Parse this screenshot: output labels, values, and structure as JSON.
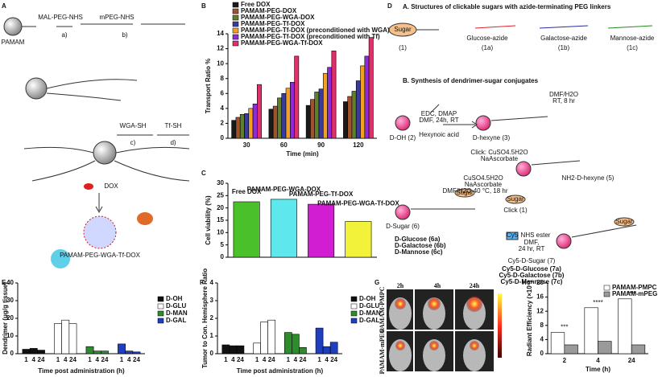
{
  "scheme_a": {
    "panel": "A",
    "texts": [
      "MAL-PEG-NHS",
      "mPEG-NHS",
      "a)",
      "b)",
      "PAMAM",
      "WGA-SH",
      "Tf-SH",
      "c)",
      "d)",
      "DOX",
      "PAMAM-PEG-WGA-Tf-DOX"
    ]
  },
  "scheme_d": {
    "panel": "D",
    "heading_a": "A. Structures of clickable sugars with azide-terminating PEG linkers",
    "heading_b": "B. Synthesis of dendrimer-sugar conjugates",
    "sugar_structures": [
      "Sugar",
      "(1)",
      "Glucose-azide",
      "(1a)",
      "Galactose-azide",
      "(1b)",
      "Mannose-azide",
      "(1c)"
    ],
    "steps": [
      "D-OH (2)",
      "EDC, DMAP",
      "DMF, 24h, RT",
      "Hexynoic acid",
      "D-hexyne (3)",
      "DMF/H2O",
      "RT, 8 hr",
      "Click: CuSO4.5H2O",
      "NaAscorbate",
      "NH2-D-hexyne (5)",
      "CuSO4.5H2O",
      "NaAscorbate",
      "DMF/H2O 40 °C, 18 hr",
      "Sugar",
      "Click (1)",
      "D-Sugar (6)",
      "Sugar",
      "Sugar",
      "Cy5",
      "NHS ester",
      "DMF,",
      "24 hr, RT",
      "Cy5-D-Sugar (7)"
    ],
    "products_6": [
      {
        "text": "D-Glucose (6a)",
        "color": "#e0202a"
      },
      {
        "text": "D-Galactose (6b)",
        "color": "#2a2aa0"
      },
      {
        "text": "D-Mannose (6c)",
        "color": "#1f8a1f"
      }
    ],
    "products_7": [
      {
        "text": "Cy5-D-Glucose (7a)",
        "color": "#e0202a"
      },
      {
        "text": "Cy5-D-Galactose (7b)",
        "color": "#2a2aa0"
      },
      {
        "text": "Cy5-D-Mannose (7c)",
        "color": "#1f8a1f"
      }
    ]
  },
  "imaging_g": {
    "panel": "G",
    "times": [
      "2h",
      "4h",
      "24h"
    ],
    "rows": [
      "PAMAM-PMPC",
      "PAMAM-mPEG"
    ]
  },
  "chart_data": [
    {
      "type": "bar",
      "panel": "B",
      "y_label": "Transport Ratio %",
      "x_label": "Time (min)",
      "categories": [
        "30",
        "60",
        "90",
        "120"
      ],
      "series": [
        {
          "name": "Free DOX",
          "color": "#1a1a1a",
          "values": [
            2.4,
            3.9,
            4.4,
            4.9
          ]
        },
        {
          "name": "PAMAM-PEG-DOX",
          "color": "#a0522d",
          "values": [
            2.8,
            4.3,
            5.2,
            5.6
          ]
        },
        {
          "name": "PAMAM-PEG-WGA-DOX",
          "color": "#5f7f2a",
          "values": [
            3.2,
            5.4,
            6.2,
            6.3
          ]
        },
        {
          "name": "PAMAM-PEG-Tf-DOX",
          "color": "#3b3b9c",
          "values": [
            3.3,
            6.0,
            6.6,
            7.7
          ]
        },
        {
          "name": "PAMAM-PEG-Tf-DOX (preconditioned with WGA)",
          "color": "#f2a024",
          "values": [
            4.0,
            6.7,
            8.7,
            9.7
          ]
        },
        {
          "name": "PAMAM-PEG-Tf-DOX (preconditioned with Tf)",
          "color": "#8e2ad8",
          "values": [
            4.6,
            7.5,
            9.5,
            11.0
          ]
        },
        {
          "name": "PAMAM-PEG-WGA-Tf-DOX",
          "color": "#e0306a",
          "values": [
            7.2,
            11.0,
            11.7,
            13.5
          ]
        }
      ],
      "ylim": [
        0,
        14
      ],
      "yticks": [
        0,
        2,
        4,
        6,
        8,
        10,
        12,
        14
      ]
    },
    {
      "type": "bar",
      "panel": "C",
      "y_label": "Cell viability (%)",
      "categories": [
        "Free DOX",
        "PAMAM-PEG-WGA-DOX",
        "PAMAM-PEG-Tf-DOX",
        "PAMAM-PEG-WGA-Tf-DOX"
      ],
      "values": [
        22.5,
        23.5,
        21.5,
        14.5
      ],
      "colors": [
        "#4ac02a",
        "#5ee8ee",
        "#d21ed2",
        "#f2f23a"
      ],
      "ylim": [
        0,
        30
      ],
      "yticks": [
        0,
        5,
        10,
        15,
        20,
        25,
        30
      ]
    },
    {
      "type": "bar",
      "panel": "E",
      "y_label": "Dendrimer (μg/g tissue)",
      "x_label": "Time post administration (h)",
      "categories": [
        "1",
        "4",
        "24"
      ],
      "series": [
        {
          "name": "D-OH",
          "color": "#111111",
          "values": [
            2.5,
            3.0,
            2.0
          ]
        },
        {
          "name": "D-GLU",
          "color": "#ffffff",
          "values": [
            17,
            19,
            17
          ]
        },
        {
          "name": "D-MAN",
          "color": "#2e8b2e",
          "values": [
            4.0,
            1.5,
            1.5
          ]
        },
        {
          "name": "D-GAL",
          "color": "#1f3fbf",
          "values": [
            5.5,
            1.5,
            1.0
          ]
        }
      ],
      "ylim": [
        0,
        40
      ],
      "yticks": [
        0,
        10,
        20,
        30,
        40
      ]
    },
    {
      "type": "bar",
      "panel": "F",
      "y_label": "Tumor to Con. Hemisphere Ratio",
      "x_label": "Time post administration (h)",
      "categories": [
        "1",
        "4",
        "24"
      ],
      "series": [
        {
          "name": "D-OH",
          "color": "#111111",
          "values": [
            0.5,
            0.45,
            0.45
          ]
        },
        {
          "name": "D-GLU",
          "color": "#ffffff",
          "values": [
            0.6,
            1.8,
            1.9
          ]
        },
        {
          "name": "D-MAN",
          "color": "#2e8b2e",
          "values": [
            1.2,
            1.1,
            0.35
          ]
        },
        {
          "name": "D-GAL",
          "color": "#1f3fbf",
          "values": [
            1.45,
            0.4,
            0.65
          ]
        }
      ],
      "ylim": [
        0,
        4
      ],
      "yticks": [
        0,
        1,
        2,
        3,
        4
      ]
    },
    {
      "type": "bar",
      "panel": "H",
      "y_label": "Radiant Efficiency (×10⁹)",
      "x_label": "Time (h)",
      "categories": [
        "2",
        "4",
        "24"
      ],
      "series": [
        {
          "name": "PAMAM-PMPC",
          "color": "#ffffff",
          "values": [
            6.0,
            13.0,
            15.5
          ]
        },
        {
          "name": "PAMAM-mPEG",
          "color": "#9a9a9a",
          "values": [
            2.5,
            3.5,
            2.5
          ]
        }
      ],
      "annotations": [
        "***",
        "****",
        "****"
      ],
      "ylim": [
        0,
        20
      ],
      "yticks": [
        0,
        4,
        8,
        12,
        16,
        20
      ]
    }
  ]
}
